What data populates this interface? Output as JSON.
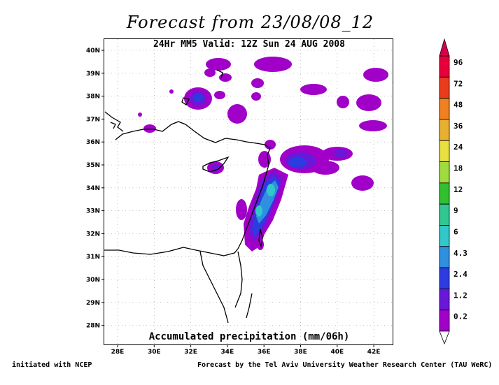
{
  "header": {
    "title": "Forecast from 23/08/08_12",
    "subtitle": "24Hr MM5 Valid: 12Z Sun 24 AUG 2008"
  },
  "map": {
    "caption": "Accumulated precipitation (mm/06h)",
    "lat_labels": [
      "40N",
      "39N",
      "38N",
      "37N",
      "36N",
      "35N",
      "34N",
      "33N",
      "32N",
      "31N",
      "30N",
      "29N",
      "28N"
    ],
    "lon_labels": [
      "28E",
      "30E",
      "32E",
      "34E",
      "36E",
      "38E",
      "40E",
      "42E"
    ],
    "grid": "dotted"
  },
  "colorbar": {
    "labels": [
      "96",
      "72",
      "48",
      "36",
      "24",
      "18",
      "12",
      "9",
      "6",
      "4.3",
      "2.4",
      "1.2",
      "0.2"
    ],
    "colors": [
      "#e8003a",
      "#e83c1c",
      "#f08020",
      "#e8b030",
      "#e8e040",
      "#a0dc40",
      "#30c030",
      "#30c890",
      "#30c8c8",
      "#3090e0",
      "#2c3ce0",
      "#6a18d8",
      "#a000c8"
    ]
  },
  "footer": {
    "left": "initiated with NCEP",
    "right": "Forecast by the Tel Aviv University Weather Research Center (TAU WeRC)"
  }
}
